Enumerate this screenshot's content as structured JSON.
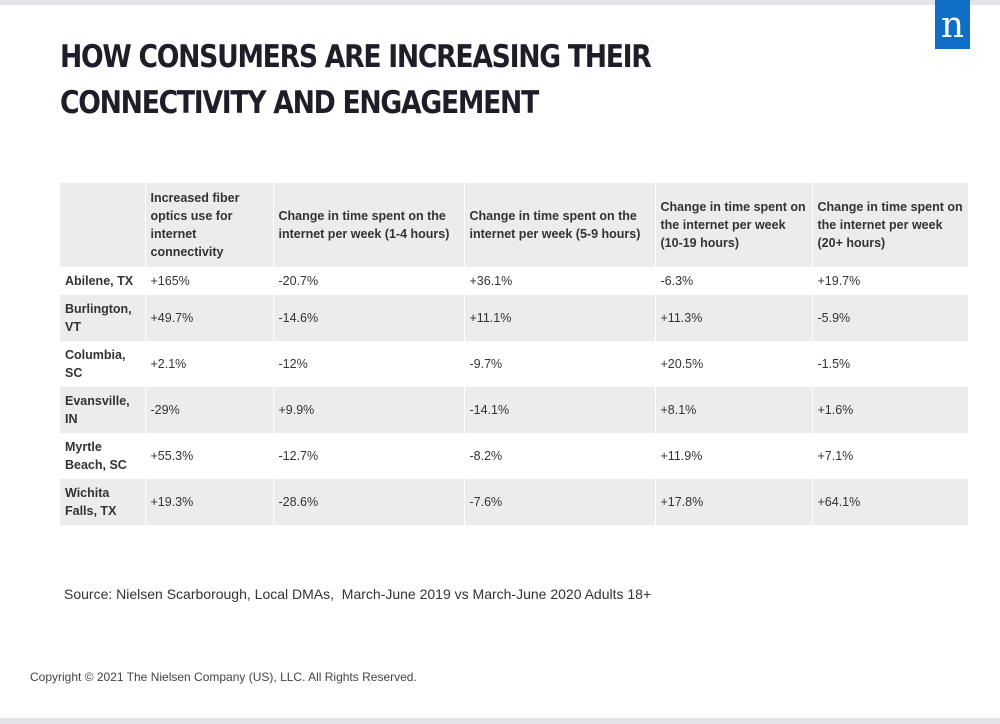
{
  "brand": {
    "logo_letter": "n",
    "logo_color": "#0f6fc6"
  },
  "title": "HOW CONSUMERS ARE INCREASING THEIR CONNECTIVITY AND ENGAGEMENT",
  "table": {
    "headers": [
      "",
      "Increased fiber optics use for internet connectivity",
      "Change in time spent on the internet per week (1-4 hours)",
      "Change in time spent on the internet per week (5-9 hours)",
      "Change in time spent on the internet per week (10-19 hours)",
      "Change in time spent on the internet per week (20+ hours)"
    ],
    "rows": [
      [
        "Abilene, TX",
        "+165%",
        "-20.7%",
        "+36.1%",
        "-6.3%",
        "+19.7%"
      ],
      [
        "Burlington, VT",
        "+49.7%",
        "-14.6%",
        "+11.1%",
        "+11.3%",
        "-5.9%"
      ],
      [
        "Columbia, SC",
        "+2.1%",
        "-12%",
        "-9.7%",
        "+20.5%",
        "-1.5%"
      ],
      [
        "Evansville, IN",
        "-29%",
        "+9.9%",
        "-14.1%",
        "+8.1%",
        "+1.6%"
      ],
      [
        "Myrtle Beach, SC",
        "+55.3%",
        "-12.7%",
        "-8.2%",
        "+11.9%",
        "+7.1%"
      ],
      [
        "Wichita Falls, TX",
        "+19.3%",
        "-28.6%",
        "-7.6%",
        "+17.8%",
        "+64.1%"
      ]
    ]
  },
  "source": "Source: Nielsen Scarborough, Local DMAs,  March-June 2019 vs March-June 2020 Adults 18+",
  "copyright": "Copyright © 2021 The Nielsen Company (US), LLC. All Rights Reserved."
}
